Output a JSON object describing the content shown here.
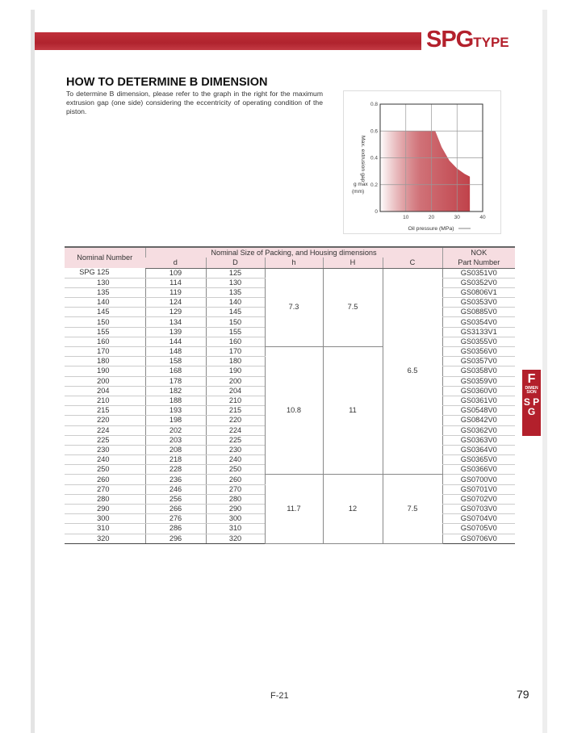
{
  "header": {
    "brand_big": "SPG",
    "brand_small": "TYPE"
  },
  "section": {
    "title": "HOW TO DETERMINE B DIMENSION",
    "text": "To determine B dimension, please refer to the graph in the right for the maximum extrusion gap (one side) considering the eccentricity of operating condition of the piston."
  },
  "chart_data": {
    "type": "area",
    "xlabel": "Oil pressure (MPa)",
    "ylabel": "Max. extrusion gap",
    "ylabel_symbol": "g max",
    "ylabel_unit": "(mm)",
    "xlim": [
      0,
      40
    ],
    "ylim": [
      0,
      0.8
    ],
    "xticks": [
      "0",
      "10",
      "20",
      "30",
      "40"
    ],
    "yticks": [
      "0",
      "0.2",
      "0.4",
      "0.6",
      "0.8"
    ],
    "grid": true,
    "fill_color": "#c0424a",
    "x": [
      0,
      21.5,
      24,
      27,
      30,
      33,
      35,
      35
    ],
    "y": [
      0.6,
      0.6,
      0.48,
      0.38,
      0.32,
      0.28,
      0.26,
      0
    ]
  },
  "table": {
    "headers": {
      "nominal": "Nominal Number",
      "group": "Nominal Size of Packing,  and  Housing dimensions",
      "nok": "NOK",
      "part": "Part Number",
      "cols": [
        "d",
        "D",
        "h",
        "H",
        "C"
      ]
    },
    "rows": [
      [
        "SPG  125",
        "109",
        "125",
        "GS0351V0"
      ],
      [
        "130",
        "114",
        "130",
        "GS0352V0"
      ],
      [
        "135",
        "119",
        "135",
        "GS0806V1"
      ],
      [
        "140",
        "124",
        "140",
        "GS0353V0"
      ],
      [
        "145",
        "129",
        "145",
        "GS0885V0"
      ],
      [
        "150",
        "134",
        "150",
        "GS0354V0"
      ],
      [
        "155",
        "139",
        "155",
        "GS3133V1"
      ],
      [
        "160",
        "144",
        "160",
        "GS0355V0"
      ],
      [
        "170",
        "148",
        "170",
        "GS0356V0"
      ],
      [
        "180",
        "158",
        "180",
        "GS0357V0"
      ],
      [
        "190",
        "168",
        "190",
        "GS0358V0"
      ],
      [
        "200",
        "178",
        "200",
        "GS0359V0"
      ],
      [
        "204",
        "182",
        "204",
        "GS0360V0"
      ],
      [
        "210",
        "188",
        "210",
        "GS0361V0"
      ],
      [
        "215",
        "193",
        "215",
        "GS0548V0"
      ],
      [
        "220",
        "198",
        "220",
        "GS0842V0"
      ],
      [
        "224",
        "202",
        "224",
        "GS0362V0"
      ],
      [
        "225",
        "203",
        "225",
        "GS0363V0"
      ],
      [
        "230",
        "208",
        "230",
        "GS0364V0"
      ],
      [
        "240",
        "218",
        "240",
        "GS0365V0"
      ],
      [
        "250",
        "228",
        "250",
        "GS0366V0"
      ],
      [
        "260",
        "236",
        "260",
        "GS0700V0"
      ],
      [
        "270",
        "246",
        "270",
        "GS0701V0"
      ],
      [
        "280",
        "256",
        "280",
        "GS0702V0"
      ],
      [
        "290",
        "266",
        "290",
        "GS0703V0"
      ],
      [
        "300",
        "276",
        "300",
        "GS0704V0"
      ],
      [
        "310",
        "286",
        "310",
        "GS0705V0"
      ],
      [
        "320",
        "296",
        "320",
        "GS0706V0"
      ]
    ],
    "groups": [
      {
        "span": 8,
        "h": "7.3",
        "H": "7.5"
      },
      {
        "span": 13,
        "h": "10.8",
        "H": "11"
      },
      {
        "span": 7,
        "h": "11.7",
        "H": "12"
      }
    ],
    "c_groups": [
      {
        "span": 21,
        "C": "6.5"
      },
      {
        "span": 7,
        "C": "7.5"
      }
    ]
  },
  "side_tab": {
    "letter": "F",
    "label": "DIMEN SION",
    "sub": "S P G"
  },
  "footer": {
    "code": "F-21",
    "page": "79"
  }
}
